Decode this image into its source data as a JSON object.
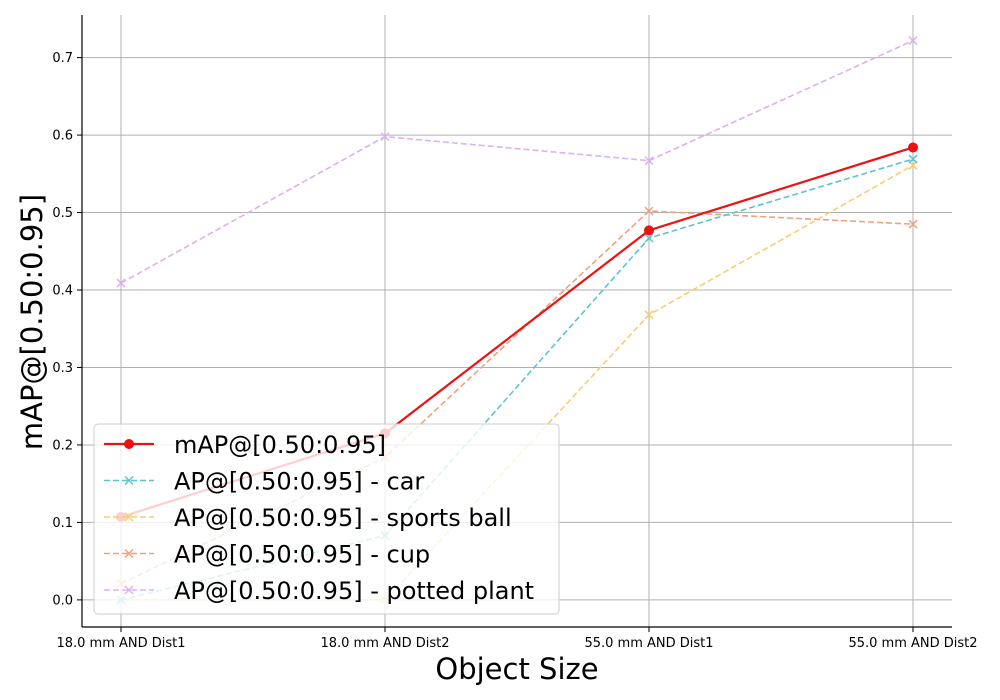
{
  "chart_data": {
    "type": "line",
    "title": "",
    "xlabel": "Object Size",
    "ylabel": "mAP@[0.50:0.95]",
    "categories": [
      "18.0 mm AND Dist1",
      "18.0 mm AND Dist2",
      "55.0 mm AND Dist1",
      "55.0 mm AND Dist2"
    ],
    "ylim": [
      -0.035,
      0.755
    ],
    "yticks": [
      "0.0",
      "0.1",
      "0.2",
      "0.3",
      "0.4",
      "0.5",
      "0.6",
      "0.7"
    ],
    "grid": true,
    "legend_position": "lower-left",
    "series": [
      {
        "name": "mAP@[0.50:0.95]",
        "values": [
          0.107,
          0.215,
          0.477,
          0.584
        ],
        "color": "#ee1111",
        "style": "solid",
        "marker": "circle"
      },
      {
        "name": "AP@[0.50:0.95] - car",
        "values": [
          0.0,
          0.083,
          0.467,
          0.569
        ],
        "color": "#5fc3cd",
        "style": "dashed",
        "marker": "x"
      },
      {
        "name": "AP@[0.50:0.95] - sports ball",
        "values": [
          0.0,
          0.0,
          0.368,
          0.561
        ],
        "color": "#f7ce72",
        "style": "dashed",
        "marker": "x"
      },
      {
        "name": "AP@[0.50:0.95] - cup",
        "values": [
          0.021,
          0.184,
          0.502,
          0.485
        ],
        "color": "#f2a07d",
        "style": "dashed",
        "marker": "x"
      },
      {
        "name": "AP@[0.50:0.95] - potted plant",
        "values": [
          0.409,
          0.598,
          0.567,
          0.722
        ],
        "color": "#ddb0ef",
        "style": "dashed",
        "marker": "x"
      }
    ]
  }
}
